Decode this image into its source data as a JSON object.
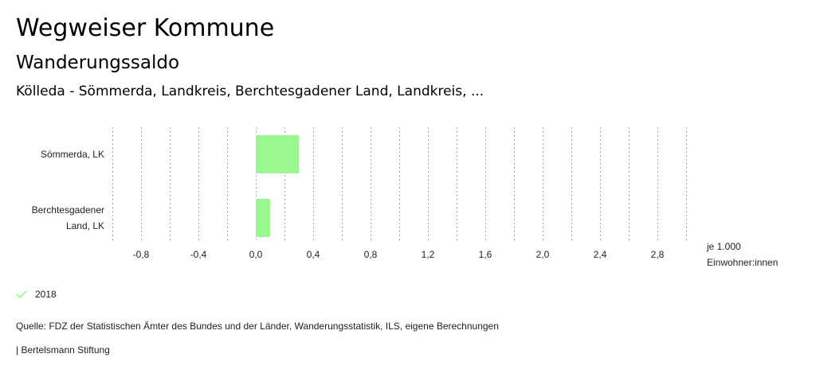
{
  "header": {
    "app_title": "Wegweiser Kommune",
    "indicator": "Wanderungssaldo",
    "regions": "Kölleda - Sömmerda, Landkreis, Berchtesgadener Land, Landkreis, ..."
  },
  "chart_data": {
    "type": "bar",
    "orientation": "horizontal",
    "categories": [
      [
        "Sömmerda, LK"
      ],
      [
        "Berchtesgadener",
        "Land, LK"
      ]
    ],
    "series": [
      {
        "name": "2018",
        "values": [
          0.3,
          0.1
        ],
        "color": "#9af893"
      }
    ],
    "xlim": [
      -1.0,
      3.0
    ],
    "grid_step": 0.2,
    "ticks": [
      -0.8,
      -0.4,
      0.0,
      0.4,
      0.8,
      1.2,
      1.6,
      2.0,
      2.4,
      2.8
    ],
    "tick_labels": [
      "-0,8",
      "-0,4",
      "0,0",
      "0,4",
      "0,8",
      "1,2",
      "1,6",
      "2,0",
      "2,4",
      "2,8"
    ],
    "unit_label": [
      "je 1.000",
      "Einwohner:innen"
    ],
    "grid": true,
    "legend": "bottom-left"
  },
  "legend": {
    "label": "2018",
    "icon": "check-icon",
    "color": "#9af893"
  },
  "footer": {
    "source": "Quelle: FDZ der Statistischen Ämter des Bundes und der Länder, Wanderungsstatistik, ILS, eigene Berechnungen",
    "brand": "| Bertelsmann Stiftung"
  }
}
